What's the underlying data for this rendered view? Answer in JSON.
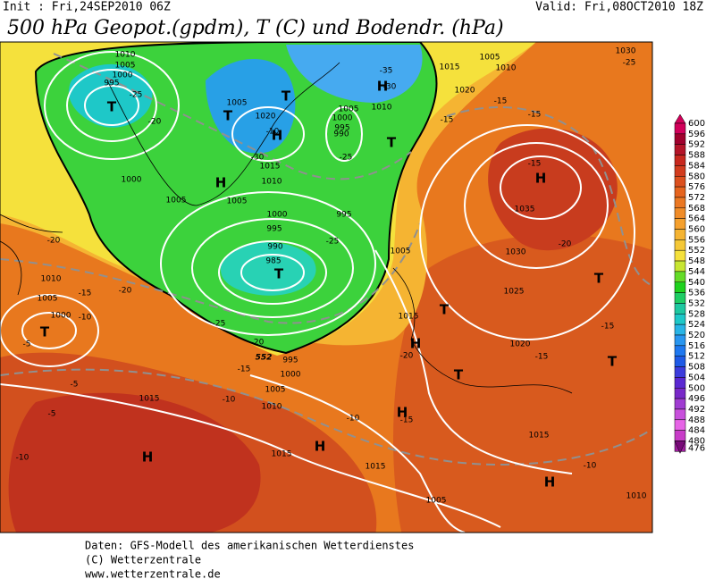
{
  "header": {
    "init": "Init : Fri,24SEP2010 06Z",
    "valid": "Valid: Fri,08OCT2010 18Z",
    "title": "500 hPa Geopot.(gpdm), T (C) und Bodendr. (hPa)"
  },
  "colorbar": {
    "levels": [
      "600",
      "596",
      "592",
      "588",
      "584",
      "580",
      "576",
      "572",
      "568",
      "564",
      "560",
      "556",
      "552",
      "548",
      "544",
      "540",
      "536",
      "532",
      "528",
      "524",
      "520",
      "516",
      "512",
      "508",
      "504",
      "500",
      "496",
      "492",
      "488",
      "484",
      "480",
      "476"
    ],
    "colors": [
      "#d2005a",
      "#a0002d",
      "#b41428",
      "#c8281e",
      "#d23c1e",
      "#dc501e",
      "#e6641e",
      "#eb7823",
      "#f08c28",
      "#f5a02d",
      "#f5b432",
      "#f5c837",
      "#f5e13c",
      "#c8e632",
      "#64dc28",
      "#1ed21e",
      "#1ecd64",
      "#1ec8a0",
      "#1ec8c8",
      "#28b4e6",
      "#2896f0",
      "#1e78f0",
      "#1e5ae6",
      "#3c3cdc",
      "#5a28d2",
      "#7828c8",
      "#a03cd2",
      "#c850dc",
      "#e664e6",
      "#c83cc8",
      "#a01ea0",
      "#780a78"
    ]
  },
  "map": {
    "pressure_centers": [
      "H",
      "H",
      "H",
      "H",
      "H",
      "H",
      "H",
      "H",
      "H",
      "T",
      "T",
      "T",
      "T",
      "T",
      "T",
      "T",
      "T",
      "T",
      "T"
    ],
    "isobar_labels": [
      "1010",
      "1005",
      "1000",
      "995",
      "1005",
      "1020",
      "1015",
      "1010",
      "1005",
      "1000",
      "995",
      "990",
      "985",
      "995",
      "1005",
      "1030",
      "1025",
      "1020",
      "1035",
      "1015",
      "995",
      "1000",
      "1005",
      "1010",
      "1015",
      "1015",
      "1015",
      "1005",
      "1010",
      "1015",
      "1015",
      "1010",
      "1005",
      "1020",
      "1030",
      "1010",
      "1005",
      "1000",
      "995",
      "990",
      "1000",
      "1005",
      "1010",
      "1005",
      "1000"
    ],
    "temperature_labels": [
      "-35",
      "-30",
      "-25",
      "-20",
      "-30",
      "-25",
      "-20",
      "-20",
      "-25",
      "-25",
      "-20",
      "-15",
      "-10",
      "-15",
      "-10",
      "-5",
      "-5",
      "-5",
      "-10",
      "-10",
      "-15",
      "-10",
      "-15",
      "-15",
      "-20",
      "-15",
      "-15",
      "-20",
      "-15",
      "-15",
      "-25",
      "-10"
    ],
    "contour_label": "552"
  },
  "footer": {
    "line1": "Daten: GFS-Modell des amerikanischen Wetterdienstes",
    "line2": "(C) Wetterzentrale",
    "line3": "www.wetterzentrale.de"
  }
}
